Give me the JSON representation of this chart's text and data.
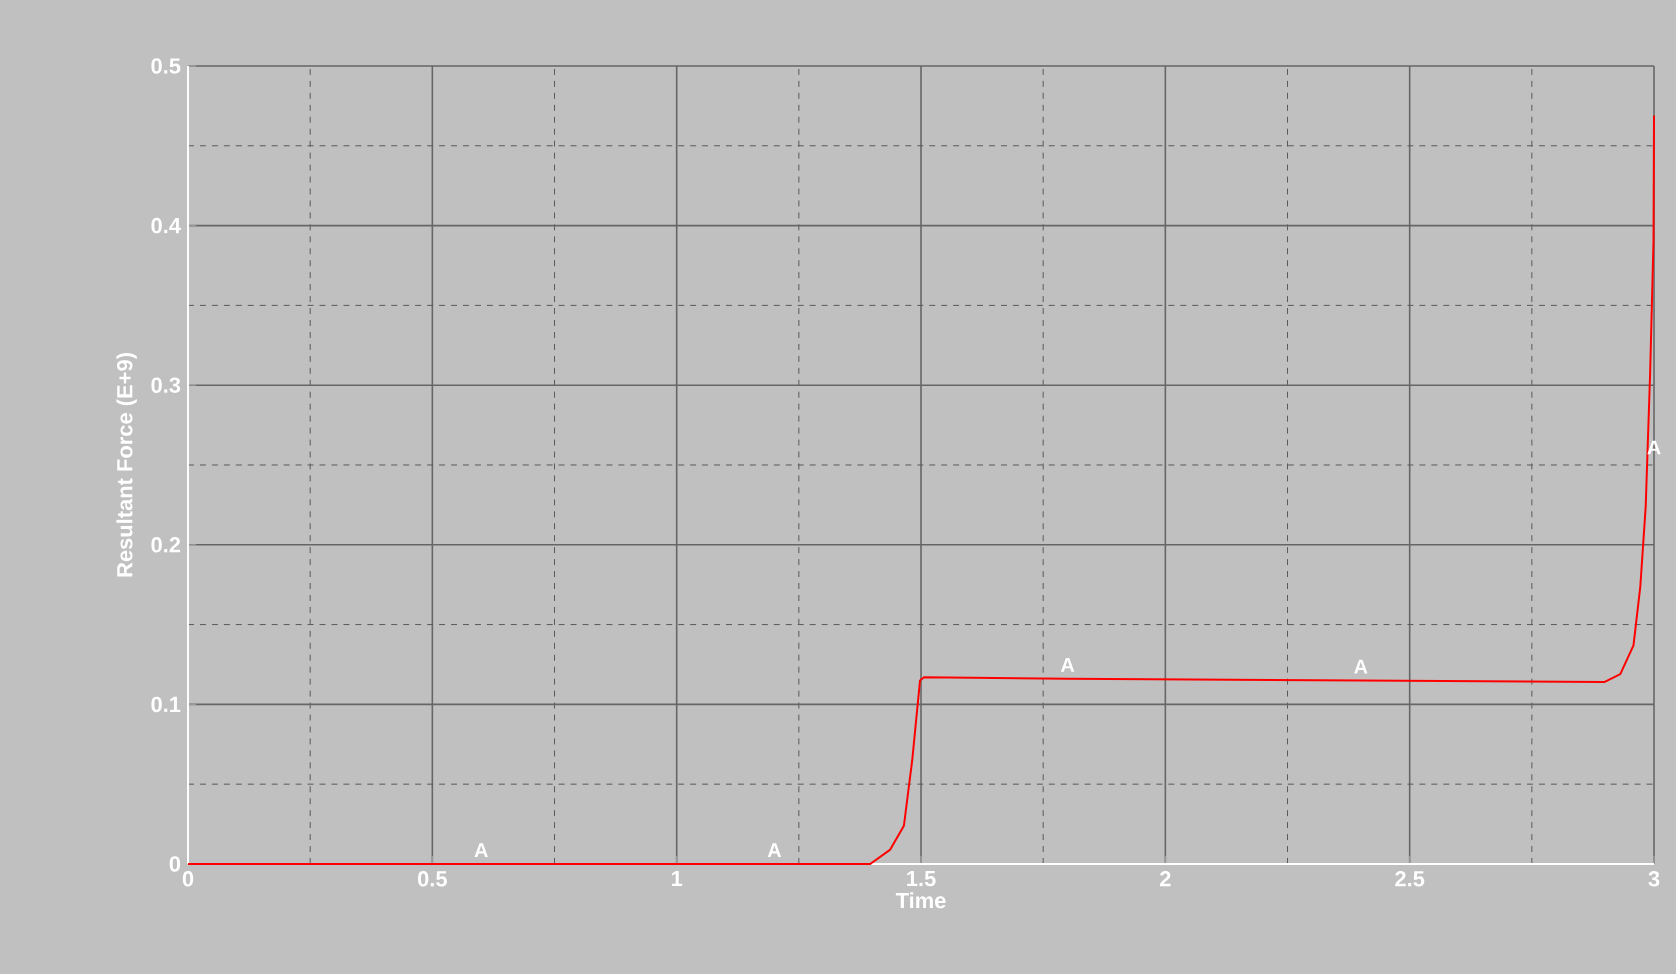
{
  "chart_data": {
    "type": "line",
    "xlabel": "Time",
    "ylabel": "Resultant Force (E+9)",
    "x": [
      0,
      0.6,
      1.2,
      1.396,
      1.437,
      1.465,
      1.482,
      1.498,
      1.506,
      1.8,
      2.4,
      2.898,
      2.931,
      2.958,
      2.972,
      2.983,
      2.992,
      2.999,
      3.0
    ],
    "series": [
      {
        "name": "A",
        "color": "#ff0000",
        "values": [
          0,
          0,
          0,
          0,
          0.009,
          0.024,
          0.065,
          0.115,
          0.117,
          0.116,
          0.115,
          0.114,
          0.119,
          0.137,
          0.174,
          0.224,
          0.307,
          0.391,
          0.469
        ]
      }
    ],
    "xlim": [
      0,
      3
    ],
    "ylim": [
      0,
      0.5
    ],
    "xticks": [
      0,
      {
        "value": 0.25,
        "label": null
      },
      0.5,
      {
        "value": 0.75,
        "label": null
      },
      1,
      {
        "value": 1.25,
        "label": null
      },
      1.5,
      {
        "value": 1.75,
        "label": null
      },
      2,
      {
        "value": 2.25,
        "label": null
      },
      2.5,
      {
        "value": 2.75,
        "label": null
      },
      3
    ],
    "yticks": [
      0,
      {
        "value": 0.05,
        "label": null
      },
      0.1,
      {
        "value": 0.15,
        "label": null
      },
      0.2,
      {
        "value": 0.25,
        "label": null
      },
      0.3,
      {
        "value": 0.35,
        "label": null
      },
      0.4,
      {
        "value": 0.45,
        "label": null
      },
      0.5
    ],
    "grid": true,
    "legend": false,
    "marker": "none",
    "line_style": "solid"
  }
}
